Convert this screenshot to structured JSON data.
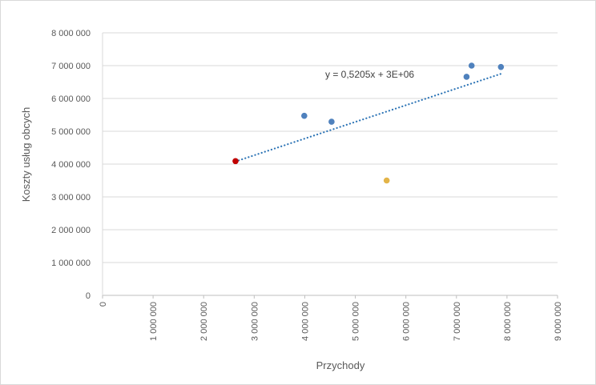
{
  "chart_data": {
    "type": "scatter",
    "xlabel": "Przychody",
    "ylabel": "Koszty usług obcych",
    "xlim": [
      0,
      9000000
    ],
    "ylim": [
      0,
      8000000
    ],
    "x_ticks": [
      "0",
      "1 000 000",
      "2 000 000",
      "3 000 000",
      "4 000 000",
      "5 000 000",
      "6 000 000",
      "7 000 000",
      "8 000 000",
      "9 000 000"
    ],
    "y_ticks": [
      "0",
      "1 000 000",
      "2 000 000",
      "3 000 000",
      "4 000 000",
      "5 000 000",
      "6 000 000",
      "7 000 000",
      "8 000 000"
    ],
    "grid": "horizontal",
    "points": [
      {
        "x": 2630000,
        "y": 4090000,
        "color": "#c00000"
      },
      {
        "x": 3990000,
        "y": 5470000,
        "color": "#4f81bd"
      },
      {
        "x": 4530000,
        "y": 5290000,
        "color": "#4f81bd"
      },
      {
        "x": 5620000,
        "y": 3500000,
        "color": "#e3b448"
      },
      {
        "x": 7200000,
        "y": 6660000,
        "color": "#4f81bd"
      },
      {
        "x": 7300000,
        "y": 7000000,
        "color": "#4f81bd"
      },
      {
        "x": 7880000,
        "y": 6960000,
        "color": "#4f81bd"
      }
    ],
    "trendline": {
      "type": "linear",
      "equation": "y = 0,5205x + 3E+06",
      "x_range": [
        2630000,
        7880000
      ],
      "y_range": [
        4080000,
        6750000
      ],
      "color": "#2e75b6"
    }
  }
}
